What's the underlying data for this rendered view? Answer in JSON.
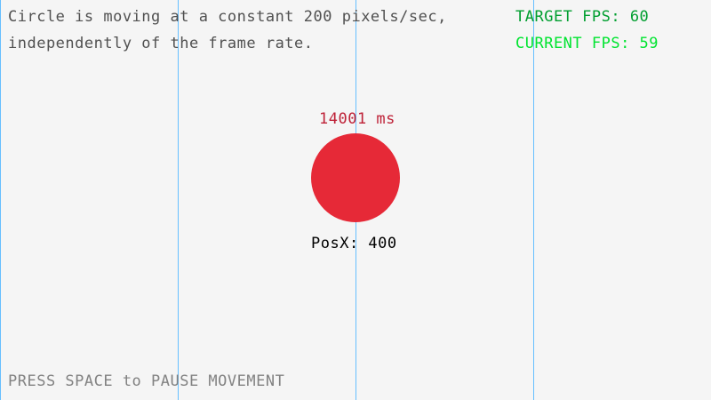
{
  "info": {
    "line1": "Circle is moving at a constant 200 pixels/sec,",
    "line2": "independently of the frame rate."
  },
  "fps": {
    "target_label": "TARGET FPS: 60",
    "current_label": "CURRENT FPS: 59",
    "target_color": "#009E2F",
    "current_color": "#00E430"
  },
  "circle": {
    "timer": "14001 ms",
    "posx": "PosX: 400",
    "color": "#E62937",
    "timer_color": "#BE2137"
  },
  "footer": {
    "hint": "PRESS SPACE to PAUSE MOVEMENT"
  },
  "colors": {
    "background": "#F5F5F5",
    "grid_lines": "#66BFFF",
    "hint": "#828282"
  }
}
